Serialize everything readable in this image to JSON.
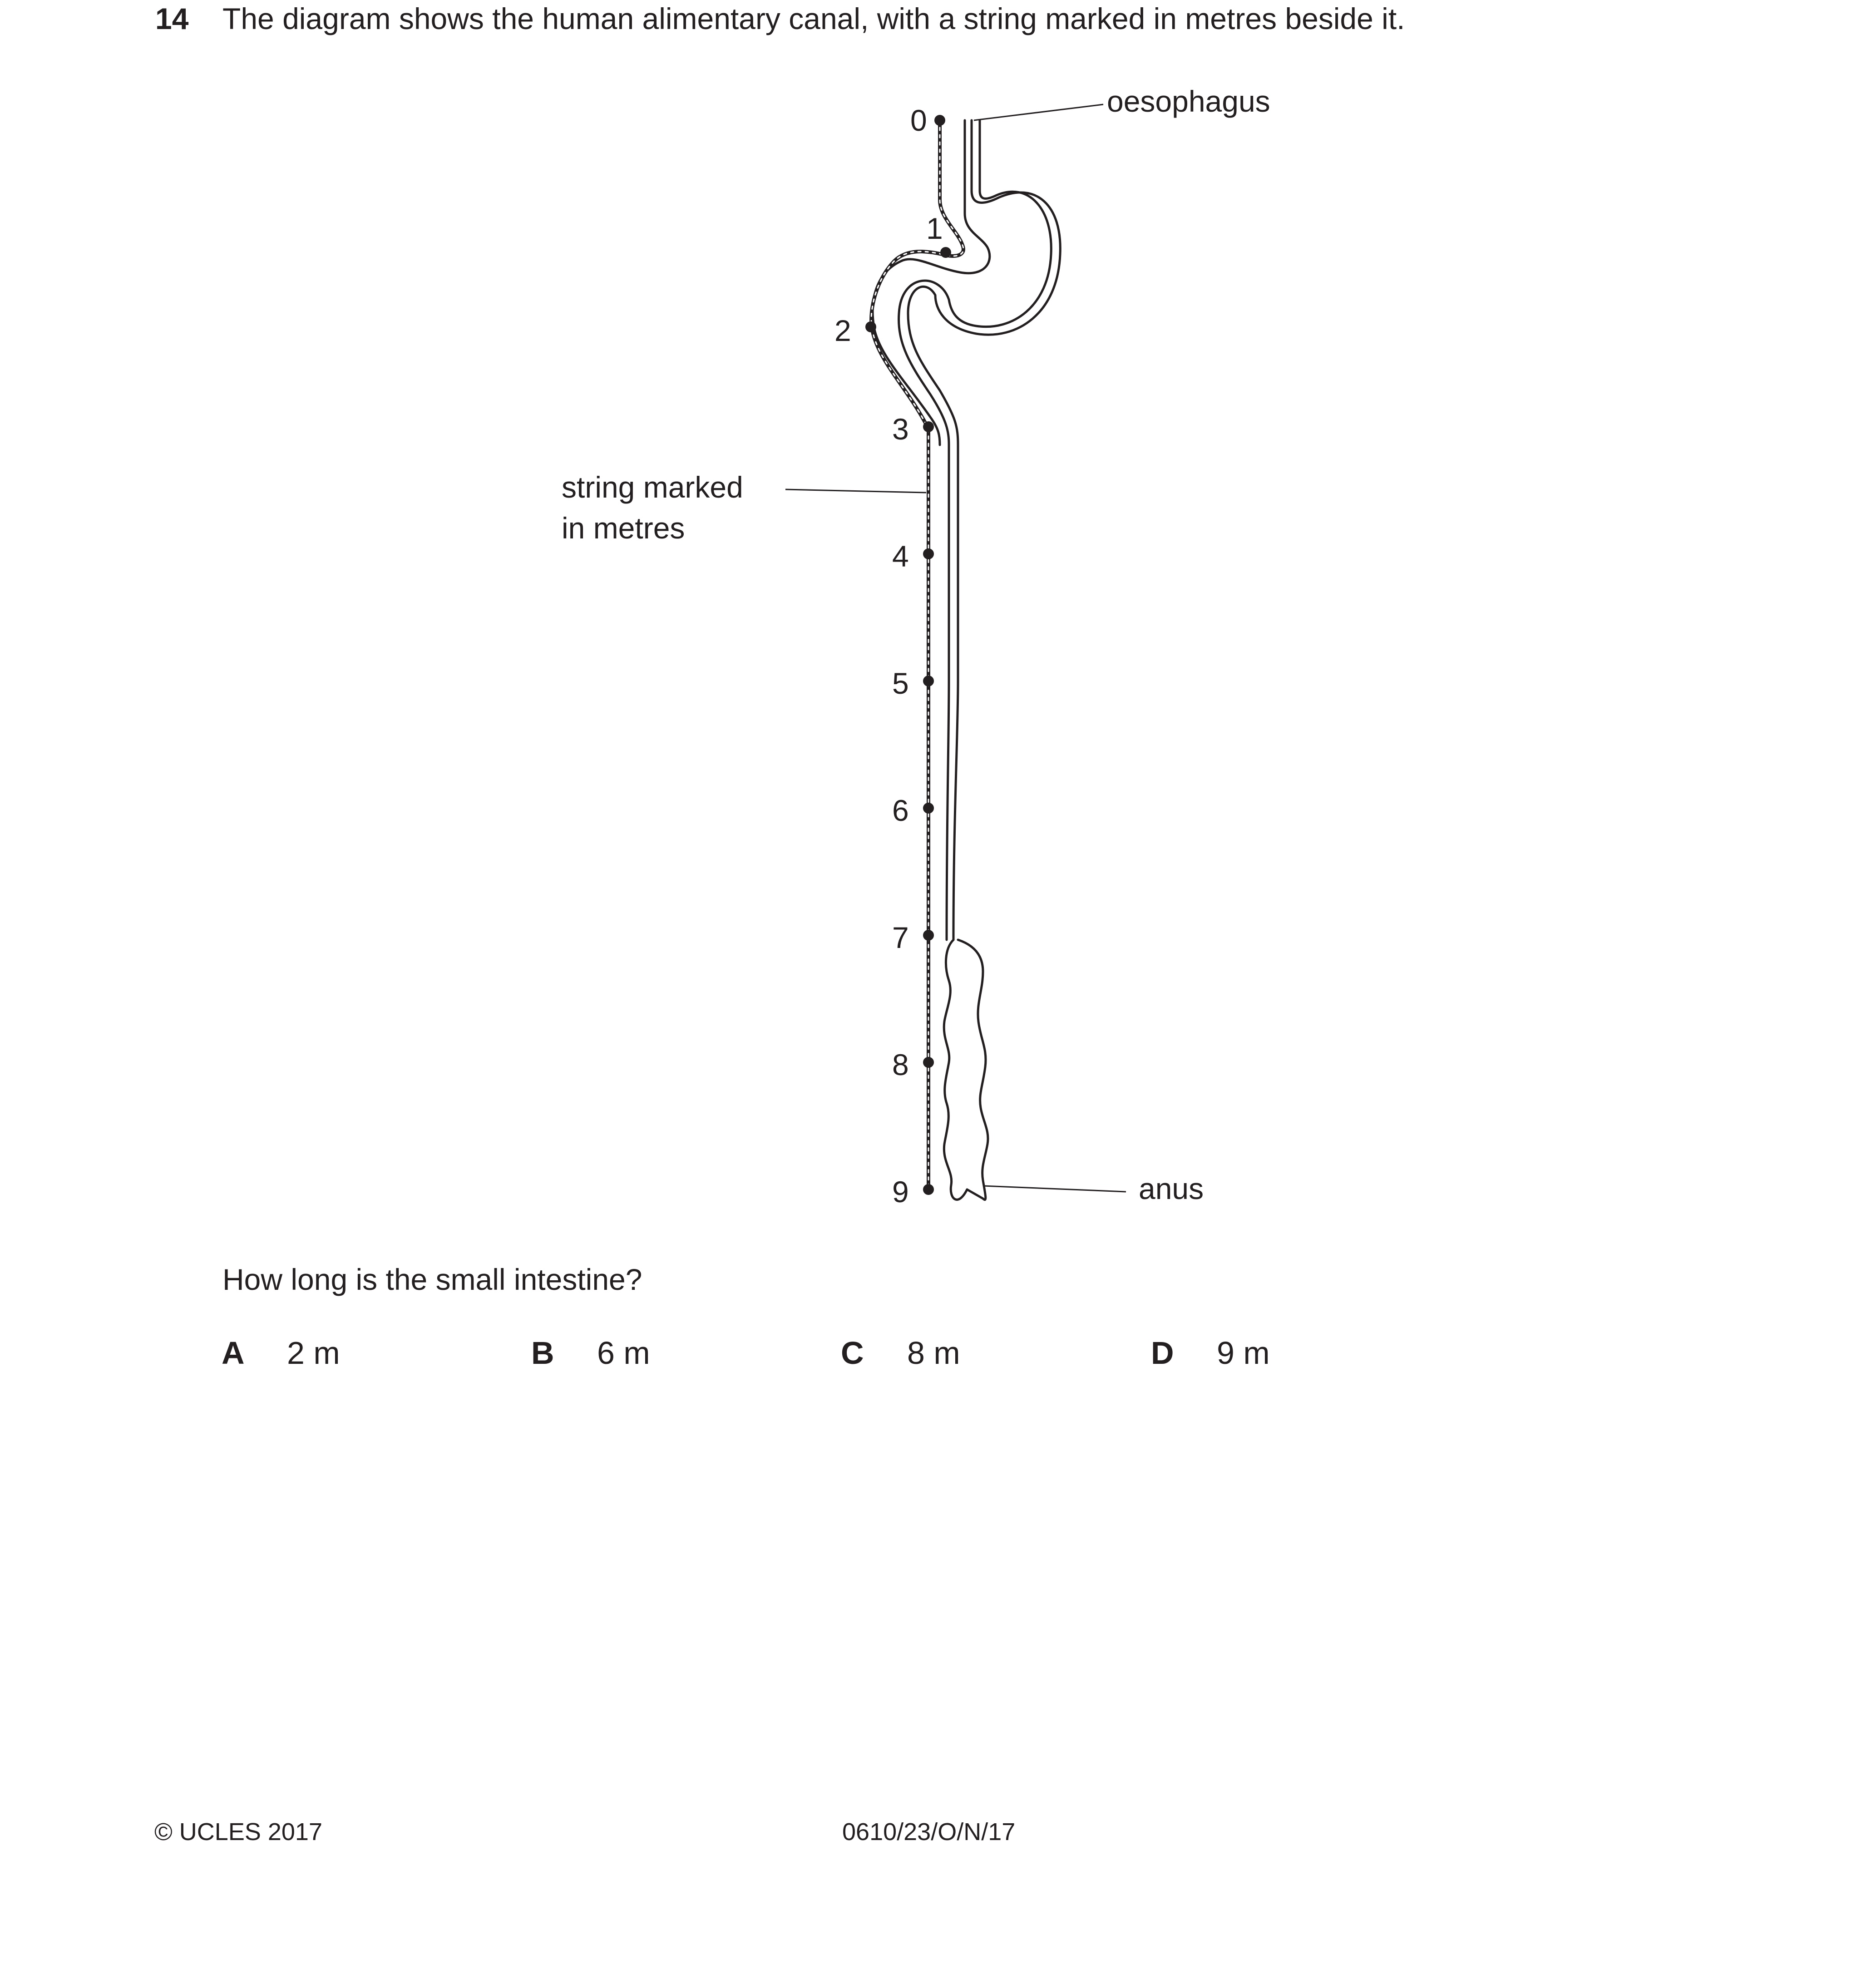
{
  "question": {
    "number": "14",
    "stem": "The diagram shows the human alimentary canal, with a string marked in metres beside it.",
    "prompt": "How long is the small intestine?"
  },
  "diagram": {
    "labels": {
      "oesophagus": "oesophagus",
      "string_line1": "string marked",
      "string_line2": "in metres",
      "anus": "anus"
    },
    "string_marks": [
      "0",
      "1",
      "2",
      "3",
      "4",
      "5",
      "6",
      "7",
      "8",
      "9"
    ]
  },
  "options": [
    {
      "letter": "A",
      "value": "2 m"
    },
    {
      "letter": "B",
      "value": "6 m"
    },
    {
      "letter": "C",
      "value": "8 m"
    },
    {
      "letter": "D",
      "value": "9 m"
    }
  ],
  "footer": {
    "copyright": "© UCLES 2017",
    "code": "0610/23/O/N/17"
  }
}
